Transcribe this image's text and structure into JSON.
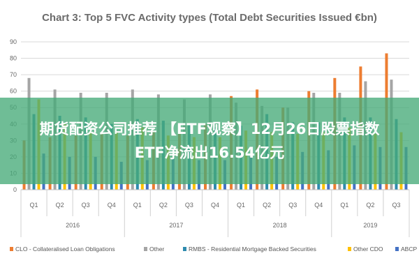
{
  "overlay": {
    "line1": "期货配资公司推荐 【ETF观察】12月26日股票指数",
    "line2": "ETF净流出16.54亿元"
  },
  "chart_data": {
    "type": "bar",
    "title": "Chart 3: Top 5 FVC Activity types (Total Debt Securities Issued €bn)",
    "ylim": [
      0,
      90
    ],
    "yticks": [
      0,
      10,
      20,
      30,
      40,
      50,
      60,
      70,
      80,
      90
    ],
    "grid": true,
    "legend_position": "bottom",
    "categories": [
      "Q1",
      "Q2",
      "Q3",
      "Q4",
      "Q1",
      "Q2",
      "Q3",
      "Q4",
      "Q1",
      "Q2",
      "Q3",
      "Q4",
      "Q1",
      "Q2",
      "Q3"
    ],
    "years": [
      {
        "label": "2016",
        "count": 4
      },
      {
        "label": "2017",
        "count": 4
      },
      {
        "label": "2018",
        "count": 4
      },
      {
        "label": "2019",
        "count": 3
      }
    ],
    "series": [
      {
        "name": "CLO - Collateralised Loan Obligations",
        "color": "#ed7d31",
        "values": [
          30,
          32,
          33,
          34,
          33,
          35,
          36,
          40,
          57,
          61,
          50,
          60,
          68,
          75,
          83
        ]
      },
      {
        "name": "Other",
        "color": "#a5a5a5",
        "values": [
          68,
          61,
          59,
          59,
          61,
          58,
          55,
          58,
          53,
          51,
          50,
          59,
          59,
          66,
          67
        ]
      },
      {
        "name": "RMBS - Residential Mortgage Backed Securities",
        "color": "#2e8bae",
        "values": [
          46,
          45,
          44,
          40,
          43,
          42,
          40,
          38,
          39,
          46,
          41,
          41,
          44,
          44,
          43
        ]
      },
      {
        "name": "Other CDO",
        "color": "#ffc000",
        "values": [
          55,
          40,
          35,
          35,
          38,
          33,
          32,
          32,
          36,
          35,
          34,
          35,
          38,
          34,
          35
        ]
      },
      {
        "name": "ABCP",
        "color": "#4472c4",
        "values": [
          22,
          20,
          20,
          17,
          18,
          19,
          18,
          18,
          20,
          20,
          23,
          24,
          27,
          26,
          26
        ]
      }
    ]
  }
}
